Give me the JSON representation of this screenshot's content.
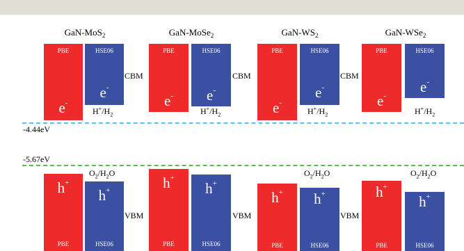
{
  "colors": {
    "pbe": "#ee2a2b",
    "hse": "#3b4fa3",
    "reduction_line": "#5bc3dd",
    "oxidation_line": "#5dbb52",
    "top_bar": "#e2dfd6"
  },
  "levels": {
    "reduction": {
      "label": "-4.44eV"
    },
    "oxidation": {
      "label": "-5.67eV"
    }
  },
  "common": {
    "pbe": "PBE",
    "hse": "HSE06",
    "electron": "e",
    "electron_sup": "-",
    "hole": "h",
    "hole_sup": "+",
    "cbm": "CBM",
    "vbm": "VBM",
    "hplus": "H",
    "hplus_sup": "+",
    "h2": "/H",
    "h2_sub": "2",
    "o2": "O",
    "o2_sub": "2",
    "h2o": "/H",
    "h2o_sub": "2",
    "h2o_o": "O"
  },
  "panels": [
    {
      "base": "GaN-MoS",
      "sub": "2"
    },
    {
      "base": "GaN-MoSe",
      "sub": "2"
    },
    {
      "base": "GaN-WS",
      "sub": "2"
    },
    {
      "base": "GaN-WSe",
      "sub": "2"
    }
  ]
}
